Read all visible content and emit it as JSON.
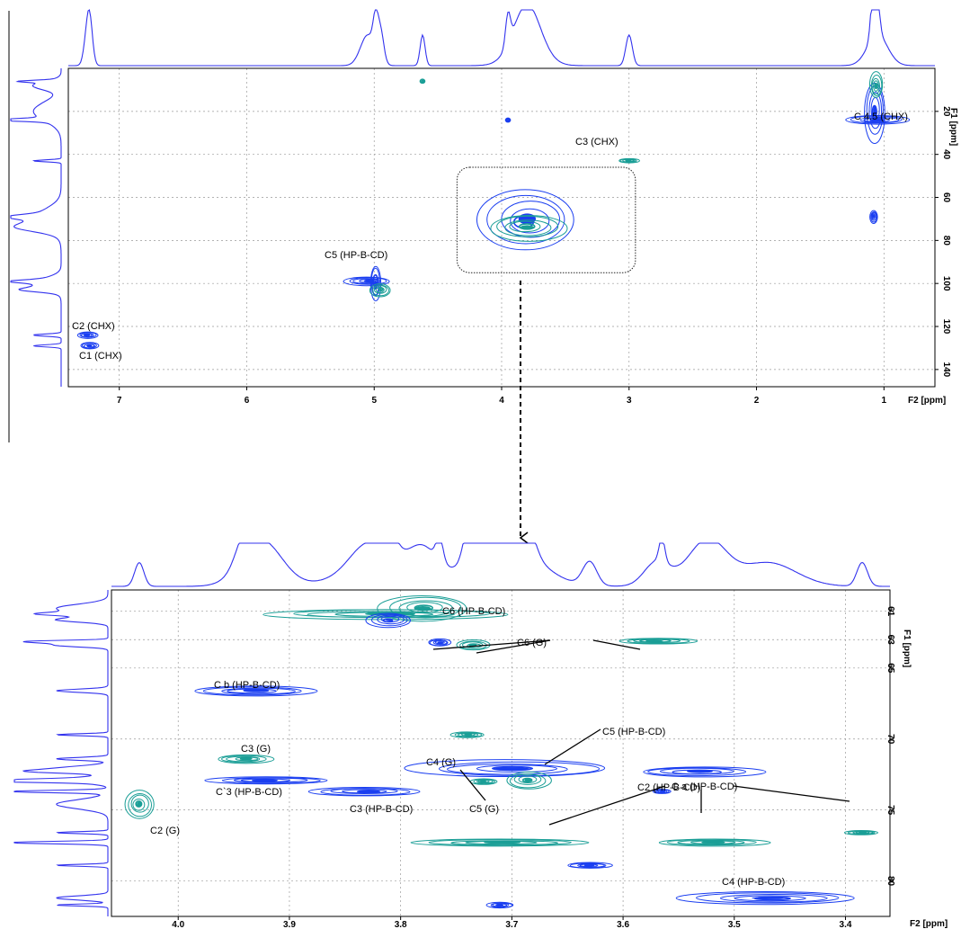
{
  "chart_data": [
    {
      "type": "heatmap",
      "title": "",
      "xlabel": "F2 [ppm]",
      "ylabel": "F1 [ppm]",
      "xlim": [
        7.4,
        0.6
      ],
      "ylim": [
        0,
        148
      ],
      "x_ticks": [
        "7",
        "6",
        "5",
        "4",
        "3",
        "2",
        "1"
      ],
      "x_tick_values": [
        7,
        6,
        5,
        4,
        3,
        2,
        1
      ],
      "y_ticks": [
        "20",
        "40",
        "60",
        "80",
        "100",
        "120",
        "140"
      ],
      "y_tick_values": [
        20,
        40,
        60,
        80,
        100,
        120,
        140
      ],
      "grid": true,
      "colors": {
        "primary": "#1a3ef0",
        "secondary": "#1a9e96",
        "projection": "#3333ee"
      },
      "highlight_box": {
        "x_range": [
          4.35,
          2.95
        ],
        "y_range": [
          46,
          95
        ]
      },
      "annotations": [
        {
          "label": "C 4.5 (CHX)",
          "x": 1.05,
          "y": 24
        },
        {
          "label": "C3 (CHX)",
          "x": 3.0,
          "y": 43
        },
        {
          "label": "C5 (HP-B-CD)",
          "x": 5.02,
          "y": 100
        },
        {
          "label": "C2 (CHX)",
          "x": 7.23,
          "y": 124
        },
        {
          "label": "C1 (CHX)",
          "x": 7.23,
          "y": 129
        }
      ],
      "peaks": [
        {
          "x": 1.07,
          "y": 20,
          "dx": 0.08,
          "dy": 14,
          "series": "primary"
        },
        {
          "x": 1.05,
          "y": 24,
          "dx": 0.25,
          "dy": 2,
          "series": "primary"
        },
        {
          "x": 1.06,
          "y": 8,
          "dx": 0.05,
          "dy": 6,
          "series": "secondary"
        },
        {
          "x": 1.08,
          "y": 69,
          "dx": 0.03,
          "dy": 3,
          "series": "primary"
        },
        {
          "x": 3.0,
          "y": 43,
          "dx": 0.08,
          "dy": 1,
          "series": "secondary"
        },
        {
          "x": 3.95,
          "y": 24,
          "dx": 0.02,
          "dy": 1,
          "series": "primary"
        },
        {
          "x": 4.62,
          "y": 6,
          "dx": 0.02,
          "dy": 1,
          "series": "secondary"
        },
        {
          "x": 3.8,
          "y": 70,
          "dx": 0.38,
          "dy": 14,
          "series": "primary"
        },
        {
          "x": 3.8,
          "y": 74,
          "dx": 0.3,
          "dy": 6,
          "series": "secondary"
        },
        {
          "x": 5.05,
          "y": 99,
          "dx": 0.18,
          "dy": 2,
          "series": "primary"
        },
        {
          "x": 4.99,
          "y": 100,
          "dx": 0.04,
          "dy": 8,
          "series": "primary"
        },
        {
          "x": 4.95,
          "y": 103,
          "dx": 0.08,
          "dy": 3,
          "series": "secondary"
        },
        {
          "x": 7.25,
          "y": 124,
          "dx": 0.08,
          "dy": 1.5,
          "series": "primary"
        },
        {
          "x": 7.23,
          "y": 129,
          "dx": 0.07,
          "dy": 1.5,
          "series": "primary"
        }
      ]
    },
    {
      "type": "heatmap",
      "title": "",
      "xlabel": "F2 [ppm]",
      "ylabel": "F1 [ppm]",
      "xlim": [
        4.06,
        3.36
      ],
      "ylim": [
        59.5,
        82.5
      ],
      "x_ticks": [
        "4.0",
        "3.9",
        "3.8",
        "3.7",
        "3.6",
        "3.5",
        "3.4"
      ],
      "x_tick_values": [
        4.0,
        3.9,
        3.8,
        3.7,
        3.6,
        3.5,
        3.4
      ],
      "y_ticks": [
        "61",
        "63",
        "65",
        "70",
        "75",
        "80"
      ],
      "y_tick_values": [
        61,
        63,
        65,
        70,
        75,
        80
      ],
      "grid": true,
      "colors": {
        "primary": "#1a3ef0",
        "secondary": "#1a9e96",
        "projection": "#3333ee"
      },
      "annotations": [
        {
          "label": "C6 (HP-B-CD)",
          "x": 3.73,
          "y": 60.6
        },
        {
          "label": "C6 (G)",
          "x": 3.66,
          "y": 62.4
        },
        {
          "label": "C b (HP-B-CD)",
          "x": 3.93,
          "y": 66.3
        },
        {
          "label": "C5 (HP-B-CD)",
          "x": 3.58,
          "y": 69.4
        },
        {
          "label": "C3 (G)",
          "x": 3.93,
          "y": 71.4
        },
        {
          "label": "C4 (G)",
          "x": 3.75,
          "y": 72.0
        },
        {
          "label": "C`3 (HP-B-CD)",
          "x": 3.93,
          "y": 73.9
        },
        {
          "label": "C2 (HP-B-CD)",
          "x": 3.55,
          "y": 73.6
        },
        {
          "label": "C3 (HP-B-CD)",
          "x": 3.83,
          "y": 74.8
        },
        {
          "label": "C5 (G)",
          "x": 3.72,
          "y": 74.5
        },
        {
          "label": "C2 (G)",
          "x": 4.01,
          "y": 75.5
        },
        {
          "label": "C a (HP-B-CD)",
          "x": 3.51,
          "y": 75.3
        },
        {
          "label": "C4 (HP-B-CD)",
          "x": 3.51,
          "y": 80.2
        }
      ],
      "peaks": [
        {
          "x": 3.81,
          "y": 61.2,
          "dx": 0.11,
          "dy": 0.35,
          "series": "secondary"
        },
        {
          "x": 3.78,
          "y": 60.8,
          "dx": 0.04,
          "dy": 0.9,
          "series": "secondary"
        },
        {
          "x": 3.81,
          "y": 61.6,
          "dx": 0.02,
          "dy": 0.5,
          "series": "primary"
        },
        {
          "x": 3.765,
          "y": 63.2,
          "dx": 0.01,
          "dy": 0.25,
          "series": "primary"
        },
        {
          "x": 3.735,
          "y": 63.4,
          "dx": 0.015,
          "dy": 0.35,
          "series": "secondary"
        },
        {
          "x": 3.57,
          "y": 63.1,
          "dx": 0.035,
          "dy": 0.2,
          "series": "secondary"
        },
        {
          "x": 3.93,
          "y": 66.6,
          "dx": 0.055,
          "dy": 0.35,
          "series": "primary"
        },
        {
          "x": 3.74,
          "y": 69.7,
          "dx": 0.015,
          "dy": 0.2,
          "series": "secondary"
        },
        {
          "x": 3.94,
          "y": 71.4,
          "dx": 0.025,
          "dy": 0.3,
          "series": "secondary"
        },
        {
          "x": 3.7,
          "y": 72.1,
          "dx": 0.09,
          "dy": 0.6,
          "series": "primary"
        },
        {
          "x": 3.53,
          "y": 72.3,
          "dx": 0.055,
          "dy": 0.35,
          "series": "primary"
        },
        {
          "x": 3.685,
          "y": 72.9,
          "dx": 0.02,
          "dy": 0.6,
          "series": "secondary"
        },
        {
          "x": 3.92,
          "y": 72.9,
          "dx": 0.055,
          "dy": 0.25,
          "series": "primary"
        },
        {
          "x": 3.83,
          "y": 73.7,
          "dx": 0.05,
          "dy": 0.3,
          "series": "primary"
        },
        {
          "x": 3.725,
          "y": 73.0,
          "dx": 0.012,
          "dy": 0.2,
          "series": "secondary"
        },
        {
          "x": 3.565,
          "y": 73.7,
          "dx": 0.008,
          "dy": 0.15,
          "series": "primary"
        },
        {
          "x": 4.035,
          "y": 74.6,
          "dx": 0.013,
          "dy": 1.0,
          "series": "secondary"
        },
        {
          "x": 3.71,
          "y": 77.3,
          "dx": 0.08,
          "dy": 0.25,
          "series": "secondary"
        },
        {
          "x": 3.52,
          "y": 77.3,
          "dx": 0.05,
          "dy": 0.25,
          "series": "secondary"
        },
        {
          "x": 3.385,
          "y": 76.6,
          "dx": 0.015,
          "dy": 0.15,
          "series": "secondary"
        },
        {
          "x": 3.63,
          "y": 78.9,
          "dx": 0.02,
          "dy": 0.2,
          "series": "primary"
        },
        {
          "x": 3.71,
          "y": 81.7,
          "dx": 0.012,
          "dy": 0.2,
          "series": "primary"
        },
        {
          "x": 3.47,
          "y": 81.2,
          "dx": 0.08,
          "dy": 0.45,
          "series": "primary"
        }
      ]
    }
  ]
}
